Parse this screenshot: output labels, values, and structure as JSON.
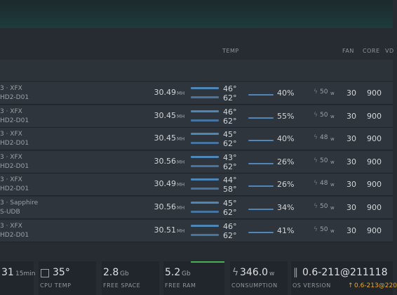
{
  "header": {
    "columns": [
      "TEMP",
      "FAN",
      "CORE",
      "VD"
    ]
  },
  "gpus": [
    {
      "brand": "3 · XFX",
      "model": "HD2-D01",
      "hashrate": "30.49",
      "hashrate_unit": "MH",
      "temp": "46°",
      "mem_temp": "62°",
      "fan": "40%",
      "power": "50",
      "power_unit": "w",
      "fan_set": "30",
      "core": "900"
    },
    {
      "brand": "3 · XFX",
      "model": "HD2-D01",
      "hashrate": "30.45",
      "hashrate_unit": "MH",
      "temp": "46°",
      "mem_temp": "62°",
      "fan": "55%",
      "power": "50",
      "power_unit": "w",
      "fan_set": "30",
      "core": "900"
    },
    {
      "brand": "3 · XFX",
      "model": "HD2-D01",
      "hashrate": "30.45",
      "hashrate_unit": "MH",
      "temp": "45°",
      "mem_temp": "62°",
      "fan": "40%",
      "power": "48",
      "power_unit": "w",
      "fan_set": "30",
      "core": "900"
    },
    {
      "brand": "3 · XFX",
      "model": "HD2-D01",
      "hashrate": "30.56",
      "hashrate_unit": "MH",
      "temp": "43°",
      "mem_temp": "62°",
      "fan": "26%",
      "power": "50",
      "power_unit": "w",
      "fan_set": "30",
      "core": "900"
    },
    {
      "brand": "3 · XFX",
      "model": "HD2-D01",
      "hashrate": "30.49",
      "hashrate_unit": "MH",
      "temp": "44°",
      "mem_temp": "58°",
      "fan": "26%",
      "power": "48",
      "power_unit": "w",
      "fan_set": "30",
      "core": "900"
    },
    {
      "brand": "3 · Sapphire",
      "model": "S-UDB",
      "hashrate": "30.56",
      "hashrate_unit": "MH",
      "temp": "45°",
      "mem_temp": "62°",
      "fan": "34%",
      "power": "50",
      "power_unit": "w",
      "fan_set": "30",
      "core": "900"
    },
    {
      "brand": "3 · XFX",
      "model": "HD2-D01",
      "hashrate": "30.51",
      "hashrate_unit": "MH",
      "temp": "46°",
      "mem_temp": "62°",
      "fan": "41%",
      "power": "50",
      "power_unit": "w",
      "fan_set": "30",
      "core": "900"
    }
  ],
  "stats": [
    {
      "value": "31",
      "unit": "15min"
    },
    {
      "value": "35°",
      "label": "CPU TEMP"
    },
    {
      "value": "2.8",
      "unit": "Gb",
      "label": "FREE SPACE"
    },
    {
      "value": "5.2",
      "unit": "Gb",
      "label": "FREE RAM"
    },
    {
      "value": "346.0",
      "unit": "w",
      "label": "CONSUMPTION"
    },
    {
      "value": "0.6-211@211118",
      "label": "OS VERSION",
      "update": "0.6-213@220"
    }
  ]
}
